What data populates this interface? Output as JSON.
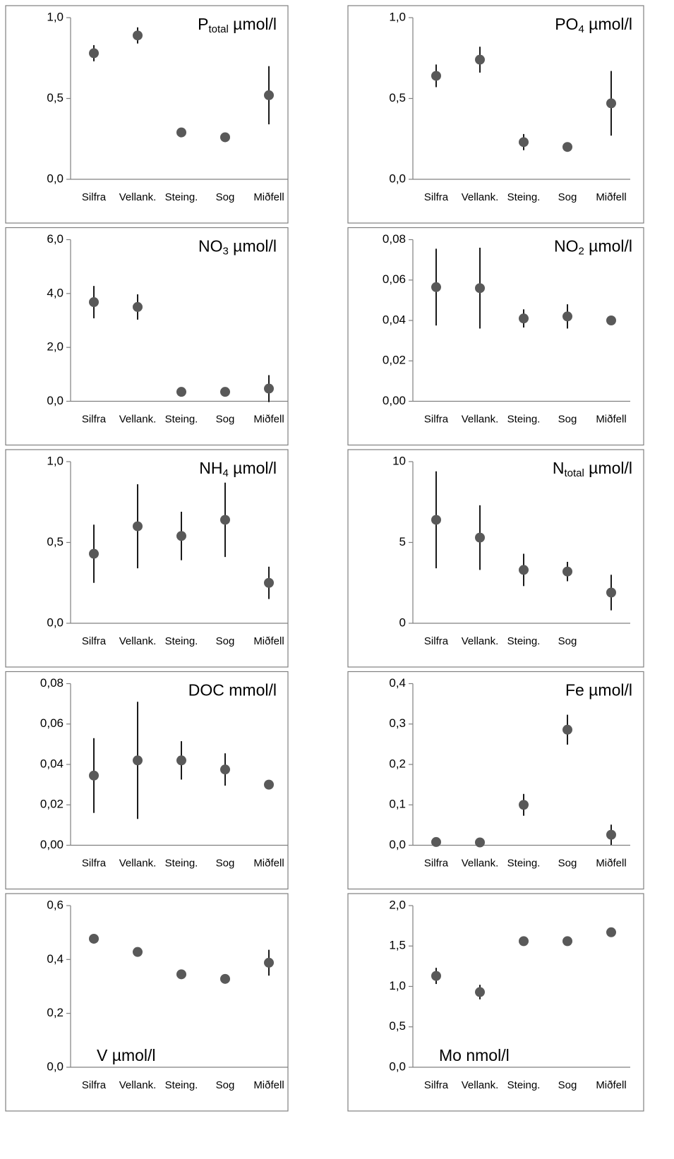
{
  "chart_data": [
    {
      "type": "scatter",
      "title": {
        "text": "P",
        "subscript": "total",
        "unit": "µmol/l"
      },
      "title_position": "top-right",
      "categories": [
        "Silfra",
        "Vellank.",
        "Steing.",
        "Sog",
        "Miðfell"
      ],
      "values": [
        0.78,
        0.89,
        0.29,
        0.26,
        0.52
      ],
      "errors": [
        0.05,
        0.05,
        0.01,
        0.01,
        0.18
      ],
      "ylim": [
        0,
        1
      ],
      "yticks": [
        {
          "value": 0,
          "label": "0,0"
        },
        {
          "value": 0.5,
          "label": "0,5"
        },
        {
          "value": 1,
          "label": "1,0"
        }
      ],
      "color": "#595959",
      "error_color": "#000000"
    },
    {
      "type": "scatter",
      "title": {
        "text": "PO",
        "subscript": "4",
        "unit": "µmol/l"
      },
      "title_position": "top-right",
      "categories": [
        "Silfra",
        "Vellank.",
        "Steing.",
        "Sog",
        "Miðfell"
      ],
      "values": [
        0.64,
        0.74,
        0.23,
        0.2,
        0.47
      ],
      "errors": [
        0.07,
        0.08,
        0.05,
        0.01,
        0.2
      ],
      "ylim": [
        0,
        1
      ],
      "yticks": [
        {
          "value": 0,
          "label": "0,0"
        },
        {
          "value": 0.5,
          "label": "0,5"
        },
        {
          "value": 1,
          "label": "1,0"
        }
      ],
      "color": "#595959",
      "error_color": "#000000"
    },
    {
      "type": "scatter",
      "title": {
        "text": "NO",
        "subscript": "3",
        "unit": "µmol/l"
      },
      "title_position": "top-right",
      "categories": [
        "Silfra",
        "Vellank.",
        "Steing.",
        "Sog",
        "Miðfell"
      ],
      "values": [
        3.68,
        3.5,
        0.35,
        0.35,
        0.47
      ],
      "errors": [
        0.6,
        0.47,
        0.05,
        0.05,
        0.5
      ],
      "ylim": [
        0,
        6
      ],
      "yticks": [
        {
          "value": 0,
          "label": "0,0"
        },
        {
          "value": 2,
          "label": "2,0"
        },
        {
          "value": 4,
          "label": "4,0"
        },
        {
          "value": 6,
          "label": "6,0"
        }
      ],
      "color": "#595959",
      "error_color": "#000000"
    },
    {
      "type": "scatter",
      "title": {
        "text": "NO",
        "subscript": "2",
        "unit": "µmol/l"
      },
      "title_position": "top-right",
      "categories": [
        "Silfra",
        "Vellank.",
        "Steing.",
        "Sog",
        "Miðfell"
      ],
      "values": [
        0.0565,
        0.056,
        0.041,
        0.042,
        0.04
      ],
      "errors": [
        0.019,
        0.02,
        0.0045,
        0.006,
        0.001
      ],
      "ylim": [
        0,
        0.08
      ],
      "yticks": [
        {
          "value": 0,
          "label": "0,00"
        },
        {
          "value": 0.02,
          "label": "0,02"
        },
        {
          "value": 0.04,
          "label": "0,04"
        },
        {
          "value": 0.06,
          "label": "0,06"
        },
        {
          "value": 0.08,
          "label": "0,08"
        }
      ],
      "color": "#595959",
      "error_color": "#000000"
    },
    {
      "type": "scatter",
      "title": {
        "text": "NH",
        "subscript": "4",
        "unit": "µmol/l"
      },
      "title_position": "top-right",
      "categories": [
        "Silfra",
        "Vellank.",
        "Steing.",
        "Sog",
        "Miðfell"
      ],
      "values": [
        0.43,
        0.6,
        0.54,
        0.64,
        0.25
      ],
      "errors": [
        0.18,
        0.26,
        0.15,
        0.23,
        0.1
      ],
      "ylim": [
        0,
        1
      ],
      "yticks": [
        {
          "value": 0,
          "label": "0,0"
        },
        {
          "value": 0.5,
          "label": "0,5"
        },
        {
          "value": 1,
          "label": "1,0"
        }
      ],
      "color": "#595959",
      "error_color": "#000000"
    },
    {
      "type": "scatter",
      "title": {
        "text": "N",
        "subscript": "total",
        "unit": "µmol/l"
      },
      "title_position": "top-right",
      "categories": [
        "Silfra",
        "Vellank.",
        "Steing.",
        "Sog",
        null
      ],
      "values": [
        6.4,
        5.3,
        3.3,
        3.2,
        1.9
      ],
      "errors": [
        3.0,
        2.0,
        1.0,
        0.6,
        1.1
      ],
      "ylim": [
        0,
        10
      ],
      "yticks": [
        0,
        5,
        10
      ],
      "color": "#595959",
      "error_color": "#000000"
    },
    {
      "type": "scatter",
      "title": {
        "text": "DOC mmol/l"
      },
      "title_position": "top-right",
      "categories": [
        "Silfra",
        "Vellank.",
        "Steing.",
        "Sog",
        "Miðfell"
      ],
      "values": [
        0.0345,
        0.042,
        0.042,
        0.0375,
        0.03
      ],
      "errors": [
        0.0185,
        0.029,
        0.0095,
        0.008,
        0.0015
      ],
      "ylim": [
        0,
        0.08
      ],
      "yticks": [
        {
          "value": 0,
          "label": "0,00"
        },
        {
          "value": 0.02,
          "label": "0,02"
        },
        {
          "value": 0.04,
          "label": "0,04"
        },
        {
          "value": 0.06,
          "label": "0,06"
        },
        {
          "value": 0.08,
          "label": "0,08"
        }
      ],
      "color": "#595959",
      "error_color": "#000000"
    },
    {
      "type": "scatter",
      "title": {
        "text": "Fe µmol/l"
      },
      "title_position": "top-right",
      "categories": [
        "Silfra",
        "Vellank.",
        "Steing.",
        "Sog",
        "Miðfell"
      ],
      "values": [
        0.008,
        0.007,
        0.1,
        0.286,
        0.026
      ],
      "errors": [
        0.002,
        0.002,
        0.027,
        0.037,
        0.025
      ],
      "ylim": [
        0,
        0.4
      ],
      "yticks": [
        {
          "value": 0,
          "label": "0,0"
        },
        {
          "value": 0.1,
          "label": "0,1"
        },
        {
          "value": 0.2,
          "label": "0,2"
        },
        {
          "value": 0.3,
          "label": "0,3"
        },
        {
          "value": 0.4,
          "label": "0,4"
        }
      ],
      "color": "#595959",
      "error_color": "#000000"
    },
    {
      "type": "scatter",
      "title": {
        "text": "V µmol/l"
      },
      "title_position": "bottom-left",
      "categories": [
        "Silfra",
        "Vellank.",
        "Steing.",
        "Sog",
        "Miðfell"
      ],
      "values": [
        0.477,
        0.428,
        0.345,
        0.328,
        0.388
      ],
      "errors": [
        0.01,
        0.01,
        0.01,
        0.01,
        0.048
      ],
      "ylim": [
        0,
        0.6
      ],
      "yticks": [
        {
          "value": 0,
          "label": "0,0"
        },
        {
          "value": 0.2,
          "label": "0,2"
        },
        {
          "value": 0.4,
          "label": "0,4"
        },
        {
          "value": 0.6,
          "label": "0,6"
        }
      ],
      "color": "#595959",
      "error_color": "#000000"
    },
    {
      "type": "scatter",
      "title": {
        "text": "Mo nmol/l"
      },
      "title_position": "bottom-left",
      "categories": [
        "Silfra",
        "Vellank.",
        "Steing.",
        "Sog",
        "Miðfell"
      ],
      "values": [
        1.13,
        0.93,
        1.56,
        1.56,
        1.67
      ],
      "errors": [
        0.1,
        0.09,
        0.03,
        0.02,
        0.03
      ],
      "ylim": [
        0,
        2
      ],
      "yticks": [
        {
          "value": 0,
          "label": "0,0"
        },
        {
          "value": 0.5,
          "label": "0,5"
        },
        {
          "value": 1,
          "label": "1,0"
        },
        {
          "value": 1.5,
          "label": "1,5"
        },
        {
          "value": 2,
          "label": "2,0"
        }
      ],
      "color": "#595959",
      "error_color": "#000000"
    }
  ]
}
